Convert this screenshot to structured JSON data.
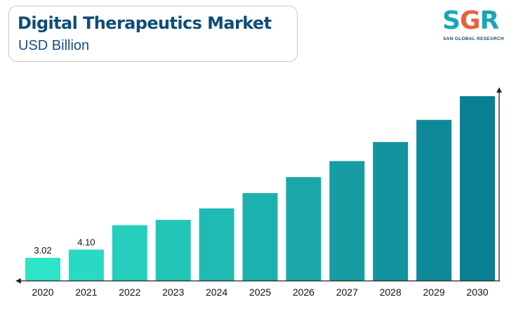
{
  "header": {
    "title": "Digital Therapeutics Market",
    "subtitle": "USD Billion"
  },
  "logo": {
    "letters": [
      "S",
      "G",
      "R"
    ],
    "tagline": "SAN GLOBAL RESEARCH"
  },
  "colors": {
    "title": "#0e4d78",
    "bar_start": "#2de3c8",
    "bar_end": "#0b7f93",
    "axis": "#222222"
  },
  "chart_data": {
    "type": "bar",
    "title": "Digital Therapeutics Market",
    "subtitle": "USD Billion",
    "categories": [
      "2020",
      "2021",
      "2022",
      "2023",
      "2024",
      "2025",
      "2026",
      "2027",
      "2028",
      "2029",
      "2030"
    ],
    "values": [
      3.02,
      4.1,
      7.3,
      8.0,
      9.5,
      11.5,
      13.6,
      15.7,
      18.2,
      21.1,
      24.2
    ],
    "data_labels": [
      "3.02",
      "4.10",
      "",
      "",
      "",
      "",
      "",
      "",
      "",
      "",
      ""
    ],
    "xlabel": "",
    "ylabel": "",
    "ylim": [
      0,
      26.5
    ],
    "grid": false,
    "legend": "none"
  }
}
